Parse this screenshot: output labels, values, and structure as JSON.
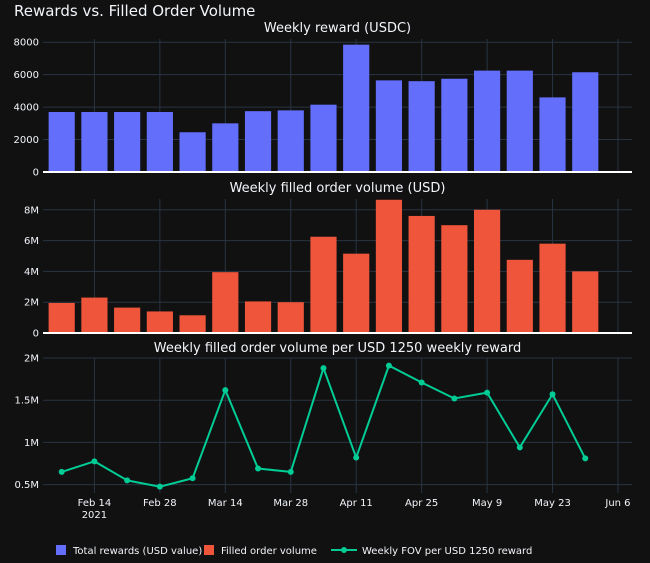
{
  "figure_title": "Rewards vs. Filled Order Volume",
  "colors": {
    "background": "#111111",
    "grid": "#283442",
    "text": "#f2f5fa",
    "rewards": "#636efa",
    "volume": "#ef553b",
    "fov": "#00cc96"
  },
  "chart_data": [
    {
      "type": "bar",
      "title": "Weekly reward (USDC)",
      "x": [
        "2021-02-07",
        "2021-02-14",
        "2021-02-21",
        "2021-02-28",
        "2021-03-07",
        "2021-03-14",
        "2021-03-21",
        "2021-03-28",
        "2021-04-04",
        "2021-04-11",
        "2021-04-18",
        "2021-04-25",
        "2021-05-02",
        "2021-05-09",
        "2021-05-16",
        "2021-05-23",
        "2021-05-30"
      ],
      "series": [
        {
          "name": "Total rewards (USD value)",
          "values": [
            3700,
            3700,
            3700,
            3700,
            2450,
            3000,
            3750,
            3800,
            4150,
            7850,
            5650,
            5600,
            5750,
            6250,
            6250,
            4600,
            6150
          ]
        }
      ],
      "ylim": [
        0,
        8200
      ],
      "yticks": [
        0,
        2000,
        4000,
        6000,
        8000
      ],
      "ytick_labels": [
        "0",
        "2000",
        "4000",
        "6000",
        "8000"
      ]
    },
    {
      "type": "bar",
      "title": "Weekly filled order volume (USD)",
      "x": [
        "2021-02-07",
        "2021-02-14",
        "2021-02-21",
        "2021-02-28",
        "2021-03-07",
        "2021-03-14",
        "2021-03-21",
        "2021-03-28",
        "2021-04-04",
        "2021-04-11",
        "2021-04-18",
        "2021-04-25",
        "2021-05-02",
        "2021-05-09",
        "2021-05-16",
        "2021-05-23",
        "2021-05-30"
      ],
      "series": [
        {
          "name": "Filled order volume",
          "values": [
            1950000,
            2300000,
            1650000,
            1400000,
            1150000,
            3950000,
            2050000,
            2000000,
            6250000,
            5150000,
            8650000,
            7600000,
            7000000,
            8000000,
            4750000,
            5800000,
            4000000
          ]
        }
      ],
      "ylim": [
        0,
        8700000
      ],
      "yticks": [
        0,
        2000000,
        4000000,
        6000000,
        8000000
      ],
      "ytick_labels": [
        "0",
        "2M",
        "4M",
        "6M",
        "8M"
      ]
    },
    {
      "type": "line",
      "title": "Weekly filled order volume per USD 1250 weekly reward",
      "x": [
        "2021-02-07",
        "2021-02-14",
        "2021-02-21",
        "2021-02-28",
        "2021-03-07",
        "2021-03-14",
        "2021-03-21",
        "2021-03-28",
        "2021-04-04",
        "2021-04-11",
        "2021-04-18",
        "2021-04-25",
        "2021-05-02",
        "2021-05-09",
        "2021-05-16",
        "2021-05-23",
        "2021-05-30"
      ],
      "series": [
        {
          "name": "Weekly FOV per USD 1250 reward",
          "values": [
            650000,
            775000,
            550000,
            475000,
            575000,
            1620000,
            690000,
            650000,
            1880000,
            820000,
            1910000,
            1710000,
            1520000,
            1590000,
            940000,
            1570000,
            810000
          ]
        }
      ],
      "ylim": [
        400000,
        2000000
      ],
      "yticks": [
        500000,
        1000000,
        1500000,
        2000000
      ],
      "ytick_labels": [
        "0.5M",
        "1M",
        "1.5M",
        "2M"
      ],
      "xticks": [
        "2021-02-14",
        "2021-02-28",
        "2021-03-14",
        "2021-03-28",
        "2021-04-11",
        "2021-04-25",
        "2021-05-09",
        "2021-05-23",
        "2021-06-06"
      ],
      "xtick_labels": [
        "Feb 14",
        "Feb 28",
        "Mar 14",
        "Mar 28",
        "Apr 11",
        "Apr 25",
        "May 9",
        "May 23",
        "Jun 6"
      ],
      "xtick_sublabel": "2021"
    }
  ],
  "legend": [
    {
      "label": "Total rewards (USD value)",
      "kind": "square"
    },
    {
      "label": "Filled order volume",
      "kind": "square"
    },
    {
      "label": "Weekly FOV per USD 1250 reward",
      "kind": "line"
    }
  ]
}
